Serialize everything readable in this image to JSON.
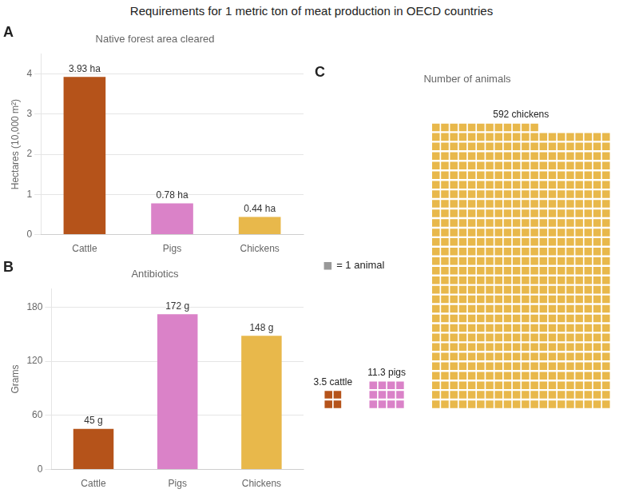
{
  "title": "Requirements for 1 metric ton of meat production in OECD countries",
  "chart_data": [
    {
      "type": "bar",
      "title": "Native forest area cleared",
      "annotations": [
        "A"
      ],
      "categories": [
        "Cattle",
        "Pigs",
        "Chickens"
      ],
      "values": [
        3.93,
        0.78,
        0.44
      ],
      "value_labels": [
        "3.93 ha",
        "0.78 ha",
        "0.44 ha"
      ],
      "data_labels": true,
      "colors": [
        "#B5531A",
        "#DA82C8",
        "#E8B84B"
      ],
      "ylabel": "Hectares (10,000 m²)",
      "ylim": [
        0,
        4.5
      ],
      "yticks": [
        0,
        1,
        2,
        3,
        4
      ],
      "grid": true
    },
    {
      "type": "bar",
      "title": "Antibiotics",
      "annotations": [
        "B"
      ],
      "categories": [
        "Cattle",
        "Pigs",
        "Chickens"
      ],
      "values": [
        45,
        172,
        148
      ],
      "value_labels": [
        "45 g",
        "172 g",
        "148 g"
      ],
      "data_labels": true,
      "colors": [
        "#B5531A",
        "#DA82C8",
        "#E8B84B"
      ],
      "ylabel": "Grams",
      "ylim": [
        0,
        200
      ],
      "yticks": [
        0,
        60,
        120,
        180
      ],
      "grid": true
    },
    {
      "type": "waffle",
      "title": "Number of animals",
      "annotations": [
        "C",
        {
          "text": "= 1 animal",
          "color": "#999999"
        }
      ],
      "values": [
        3.5,
        11.3,
        592
      ],
      "value_labels": [
        "3.5 cattle",
        "11.3 pigs",
        "592 chickens"
      ],
      "data_labels": true,
      "colors": [
        "#B5531A",
        "#DA82C8",
        "#E8B84B"
      ],
      "tick_labels": false,
      "grid": false
    }
  ]
}
